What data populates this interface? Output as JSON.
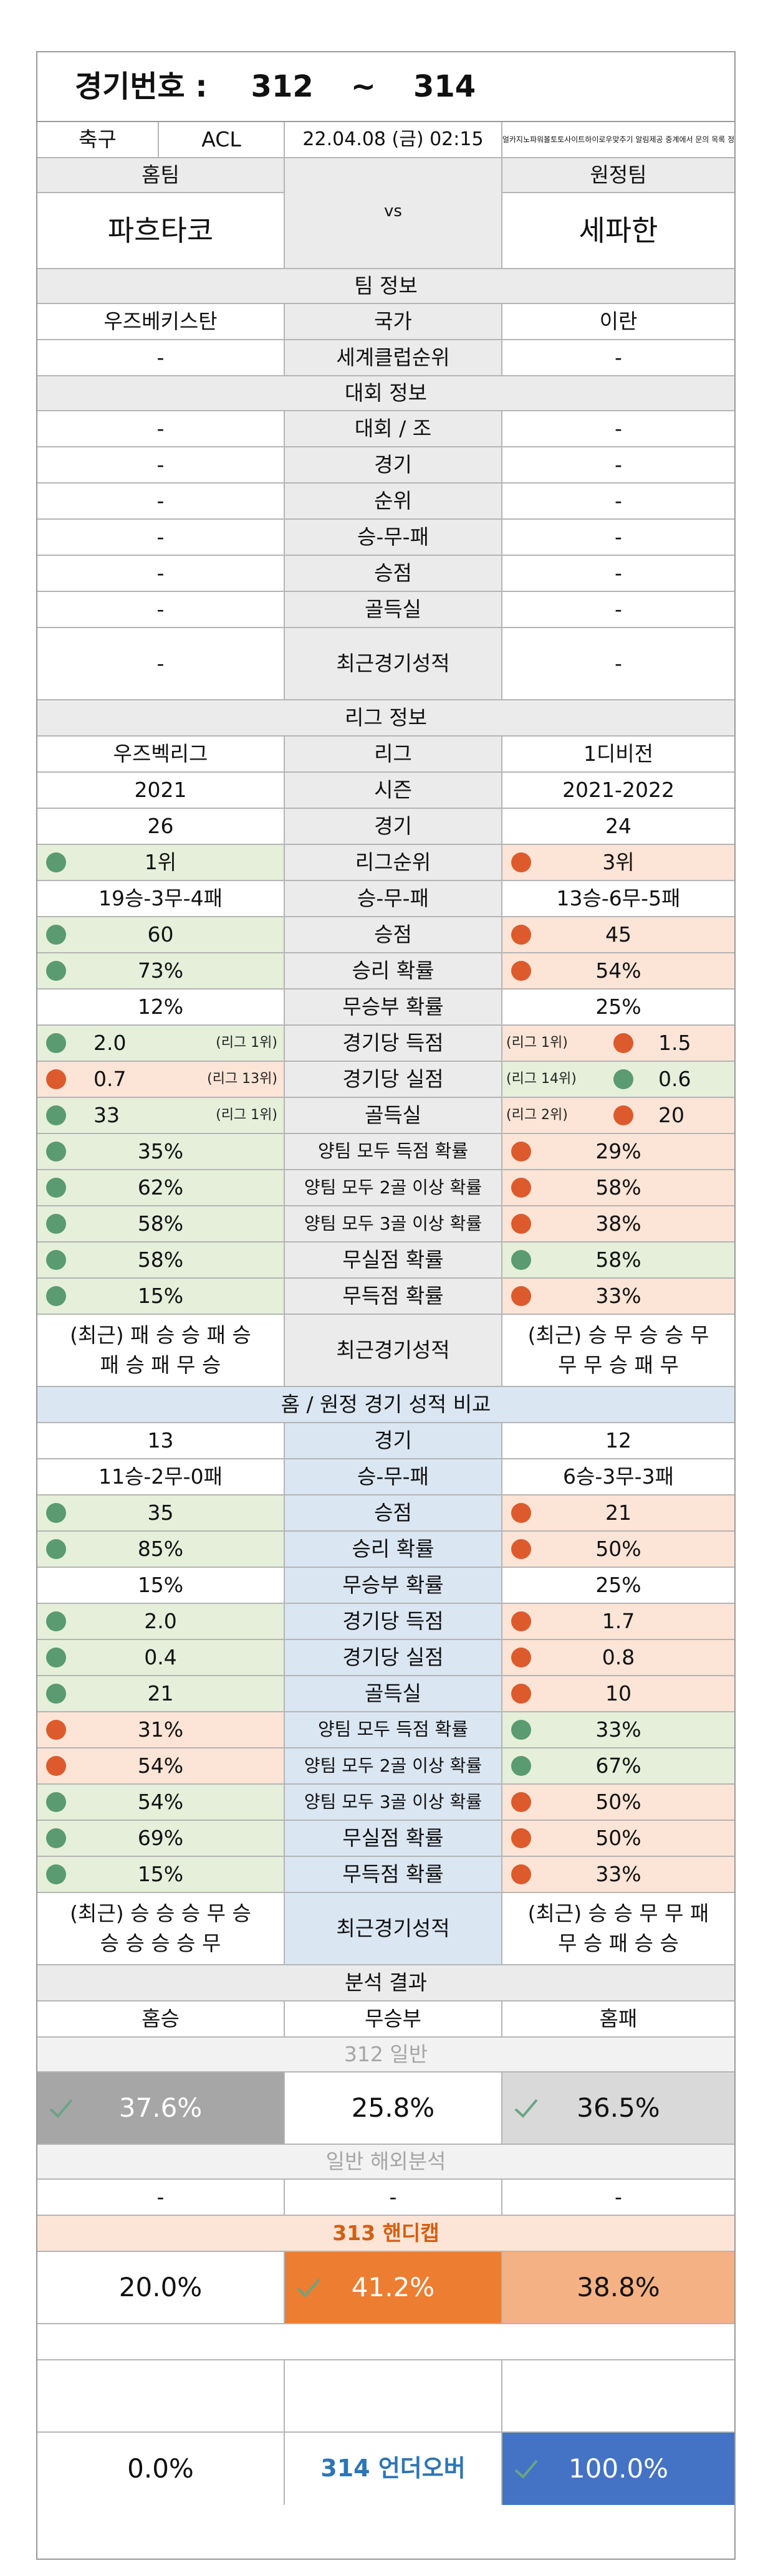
{
  "header": {
    "title_label": "경기번호 :",
    "num_from": "312",
    "tilde": "~",
    "num_to": "314",
    "sport": "축구",
    "league_code": "ACL",
    "datetime": "22.04.08 (금) 02:15",
    "notice": "리얼카지노파워볼토토사이트하이로우맞추기 알림제공 중계에서 문의 목록 정리"
  },
  "teams": {
    "home_label": "홈팀",
    "away_label": "원정팀",
    "home_name": "파흐타코",
    "away_name": "세파한",
    "vs": "vs"
  },
  "team_info": {
    "title": "팀 정보",
    "rows": [
      {
        "label": "국가",
        "home": "우즈베키스탄",
        "away": "이란"
      },
      {
        "label": "세계클럽순위",
        "home": "-",
        "away": "-"
      }
    ]
  },
  "tournament_info": {
    "title": "대회 정보",
    "rows": [
      {
        "label": "대회 / 조",
        "home": "-",
        "away": "-"
      },
      {
        "label": "경기",
        "home": "-",
        "away": "-"
      },
      {
        "label": "순위",
        "home": "-",
        "away": "-"
      },
      {
        "label": "승-무-패",
        "home": "-",
        "away": "-"
      },
      {
        "label": "승점",
        "home": "-",
        "away": "-"
      },
      {
        "label": "골득실",
        "home": "-",
        "away": "-"
      },
      {
        "label": "최근경기성적",
        "home": "-",
        "away": "-"
      }
    ]
  },
  "league_info": {
    "title": "리그 정보",
    "rows": [
      {
        "label": "리그",
        "home": "우즈벡리그",
        "away": "1디비전"
      },
      {
        "label": "시즌",
        "home": "2021",
        "away": "2021-2022"
      },
      {
        "label": "경기",
        "home": "26",
        "away": "24"
      },
      {
        "label": "리그순위",
        "home": "1위",
        "away": "3위"
      },
      {
        "label": "승-무-패",
        "home": "19승-3무-4패",
        "away": "13승-6무-5패"
      },
      {
        "label": "승점",
        "home": "60",
        "away": "45"
      },
      {
        "label": "승리 확률",
        "home": "73%",
        "away": "54%"
      },
      {
        "label": "무승부 확률",
        "home": "12%",
        "away": "25%"
      },
      {
        "label": "경기당 득점",
        "home": "2.0",
        "home_rank": "(리그 1위)",
        "away": "1.5",
        "away_rank": "(리그 1위)"
      },
      {
        "label": "경기당 실점",
        "home": "0.7",
        "home_rank": "(리그 13위)",
        "away": "0.6",
        "away_rank": "(리그 14위)"
      },
      {
        "label": "골득실",
        "home": "33",
        "home_rank": "(리그 1위)",
        "away": "20",
        "away_rank": "(리그 2위)"
      },
      {
        "label": "양팀 모두 득점 확률",
        "home": "35%",
        "away": "29%"
      },
      {
        "label": "양팀 모두 2골 이상 확률",
        "home": "62%",
        "away": "58%"
      },
      {
        "label": "양팀 모두 3골 이상 확률",
        "home": "58%",
        "away": "38%"
      },
      {
        "label": "무실점 확률",
        "home": "58%",
        "away": "58%"
      },
      {
        "label": "무득점 확률",
        "home": "15%",
        "away": "33%"
      },
      {
        "label": "최근경기성적",
        "home_l1": "(최근) 패 승 승 패 승",
        "home_l2": "패 승 패 무 승",
        "away_l1": "(최근) 승 무 승 승 무",
        "away_l2": "무 무 승 패 무"
      }
    ]
  },
  "home_away": {
    "title": "홈 / 원정 경기 성적 비교",
    "rows": [
      {
        "label": "경기",
        "home": "13",
        "away": "12"
      },
      {
        "label": "승-무-패",
        "home": "11승-2무-0패",
        "away": "6승-3무-3패"
      },
      {
        "label": "승점",
        "home": "35",
        "away": "21"
      },
      {
        "label": "승리 확률",
        "home": "85%",
        "away": "50%"
      },
      {
        "label": "무승부 확률",
        "home": "15%",
        "away": "25%"
      },
      {
        "label": "경기당 득점",
        "home": "2.0",
        "away": "1.7"
      },
      {
        "label": "경기당 실점",
        "home": "0.4",
        "away": "0.8"
      },
      {
        "label": "골득실",
        "home": "21",
        "away": "10"
      },
      {
        "label": "양팀 모두 득점 확률",
        "home": "31%",
        "away": "33%"
      },
      {
        "label": "양팀 모두 2골 이상 확률",
        "home": "54%",
        "away": "67%"
      },
      {
        "label": "양팀 모두 3골 이상 확률",
        "home": "54%",
        "away": "50%"
      },
      {
        "label": "무실점 확률",
        "home": "69%",
        "away": "50%"
      },
      {
        "label": "무득점 확률",
        "home": "15%",
        "away": "33%"
      },
      {
        "label": "최근경기성적",
        "home_l1": "(최근) 승 승 승 무 승",
        "home_l2": "승 승 승 승 무",
        "away_l1": "(최근) 승 승 무 무 패",
        "away_l2": "무 승 패 승 승"
      }
    ]
  },
  "analysis": {
    "title": "분석 결과",
    "col_home": "홈승",
    "col_draw": "무승부",
    "col_away": "홈패",
    "g312_title": "312 일반",
    "g312": {
      "home": "37.6%",
      "draw": "25.8%",
      "away": "36.5%"
    },
    "overseas_title": "일반 해외분석",
    "overseas": {
      "home": "-",
      "draw": "-",
      "away": "-"
    },
    "g313_title": "313 핸디캡",
    "g313": {
      "home": "20.0%",
      "draw": "41.2%",
      "away": "38.8%"
    },
    "g314": {
      "under": "0.0%",
      "title": "314 언더오버",
      "over": "100.0%"
    }
  },
  "colors": {
    "green": "#5a9b71",
    "orange": "#dd5a2c",
    "accent_orange": "#ed7d31",
    "accent_blue": "#4472c4"
  }
}
